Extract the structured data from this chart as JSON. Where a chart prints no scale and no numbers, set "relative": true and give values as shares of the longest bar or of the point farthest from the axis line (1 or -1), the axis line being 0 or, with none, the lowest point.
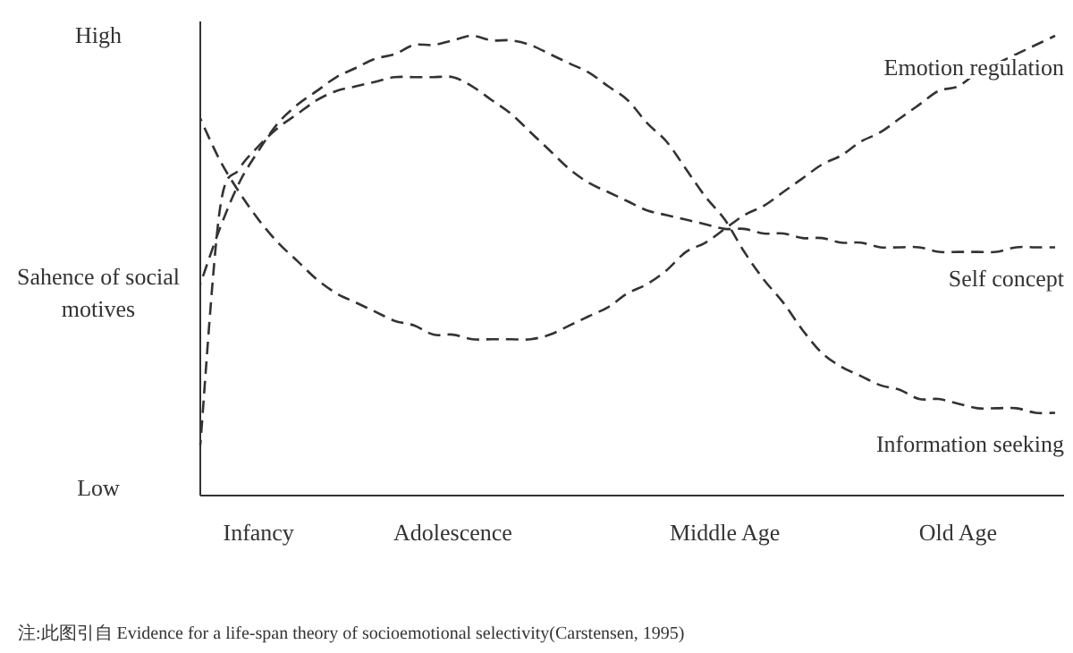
{
  "chart_data": {
    "type": "line",
    "relative": true,
    "ylabel": "Sahence of social motives",
    "line_style": "dashed",
    "marker": "none",
    "categories": [
      null,
      null,
      null,
      "Infancy",
      null,
      null,
      null,
      null,
      null,
      null,
      null,
      null,
      null,
      "Adolescence",
      null,
      null,
      null,
      null,
      null,
      null,
      null,
      null,
      null,
      null,
      null,
      null,
      null,
      "Middle Age",
      null,
      null,
      null,
      null,
      null,
      null,
      null,
      null,
      null,
      null,
      null,
      "Old Age",
      null,
      null,
      null,
      null,
      null
    ],
    "series": [
      {
        "name": "Emotion regulation",
        "color": "#333333",
        "values": [
          0.82,
          0.73,
          0.66,
          0.6,
          0.55,
          0.51,
          0.47,
          0.44,
          0.42,
          0.4,
          0.38,
          0.37,
          0.35,
          0.35,
          0.34,
          0.34,
          0.34,
          0.34,
          0.35,
          0.37,
          0.39,
          0.41,
          0.44,
          0.46,
          0.49,
          0.53,
          0.55,
          0.58,
          0.61,
          0.63,
          0.66,
          0.69,
          0.72,
          0.74,
          0.77,
          0.79,
          0.82,
          0.85,
          0.88,
          0.89,
          0.92,
          0.94,
          0.96,
          0.98,
          1.0
        ]
      },
      {
        "name": "Self concept",
        "color": "#333333",
        "values": [
          0.11,
          0.62,
          0.71,
          0.76,
          0.8,
          0.83,
          0.86,
          0.88,
          0.89,
          0.9,
          0.91,
          0.91,
          0.91,
          0.91,
          0.89,
          0.86,
          0.83,
          0.79,
          0.75,
          0.71,
          0.68,
          0.66,
          0.64,
          0.62,
          0.61,
          0.6,
          0.59,
          0.58,
          0.58,
          0.57,
          0.57,
          0.56,
          0.56,
          0.55,
          0.55,
          0.54,
          0.54,
          0.54,
          0.53,
          0.53,
          0.53,
          0.53,
          0.54,
          0.54,
          0.54
        ]
      },
      {
        "name": "Information seeking",
        "color": "#333333",
        "values": [
          0.46,
          0.58,
          0.68,
          0.75,
          0.81,
          0.85,
          0.88,
          0.91,
          0.93,
          0.95,
          0.96,
          0.98,
          0.98,
          0.99,
          1.0,
          0.99,
          0.99,
          0.98,
          0.96,
          0.94,
          0.92,
          0.89,
          0.86,
          0.81,
          0.77,
          0.71,
          0.65,
          0.6,
          0.53,
          0.47,
          0.42,
          0.36,
          0.31,
          0.28,
          0.26,
          0.24,
          0.23,
          0.21,
          0.21,
          0.2,
          0.19,
          0.19,
          0.19,
          0.18,
          0.18
        ]
      }
    ],
    "annotations": [
      "High",
      "Low",
      "注:此图引自 Evidence for a life-span theory of socioemotional selectivity(Carstensen, 1995)"
    ]
  }
}
